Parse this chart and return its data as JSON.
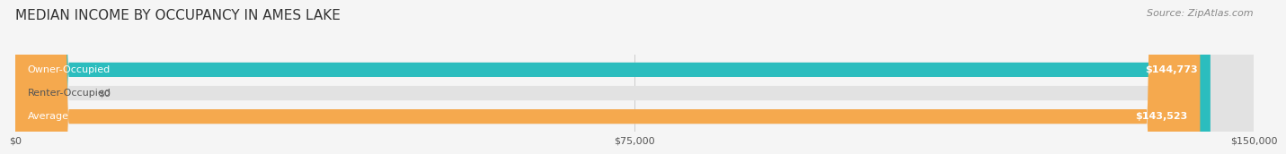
{
  "title": "MEDIAN INCOME BY OCCUPANCY IN AMES LAKE",
  "source": "Source: ZipAtlas.com",
  "categories": [
    "Owner-Occupied",
    "Renter-Occupied",
    "Average"
  ],
  "values": [
    144773,
    0,
    143523
  ],
  "bar_colors": [
    "#2BBDBE",
    "#C4A8D3",
    "#F5A94E"
  ],
  "bar_labels": [
    "$144,773",
    "$0",
    "$143,523"
  ],
  "xlim": [
    0,
    150000
  ],
  "xticks": [
    0,
    75000,
    150000
  ],
  "xtick_labels": [
    "$0",
    "$75,000",
    "$150,000"
  ],
  "background_color": "#f5f5f5",
  "bar_background_color": "#e2e2e2",
  "title_fontsize": 11,
  "source_fontsize": 8,
  "label_fontsize": 8,
  "bar_height": 0.62
}
